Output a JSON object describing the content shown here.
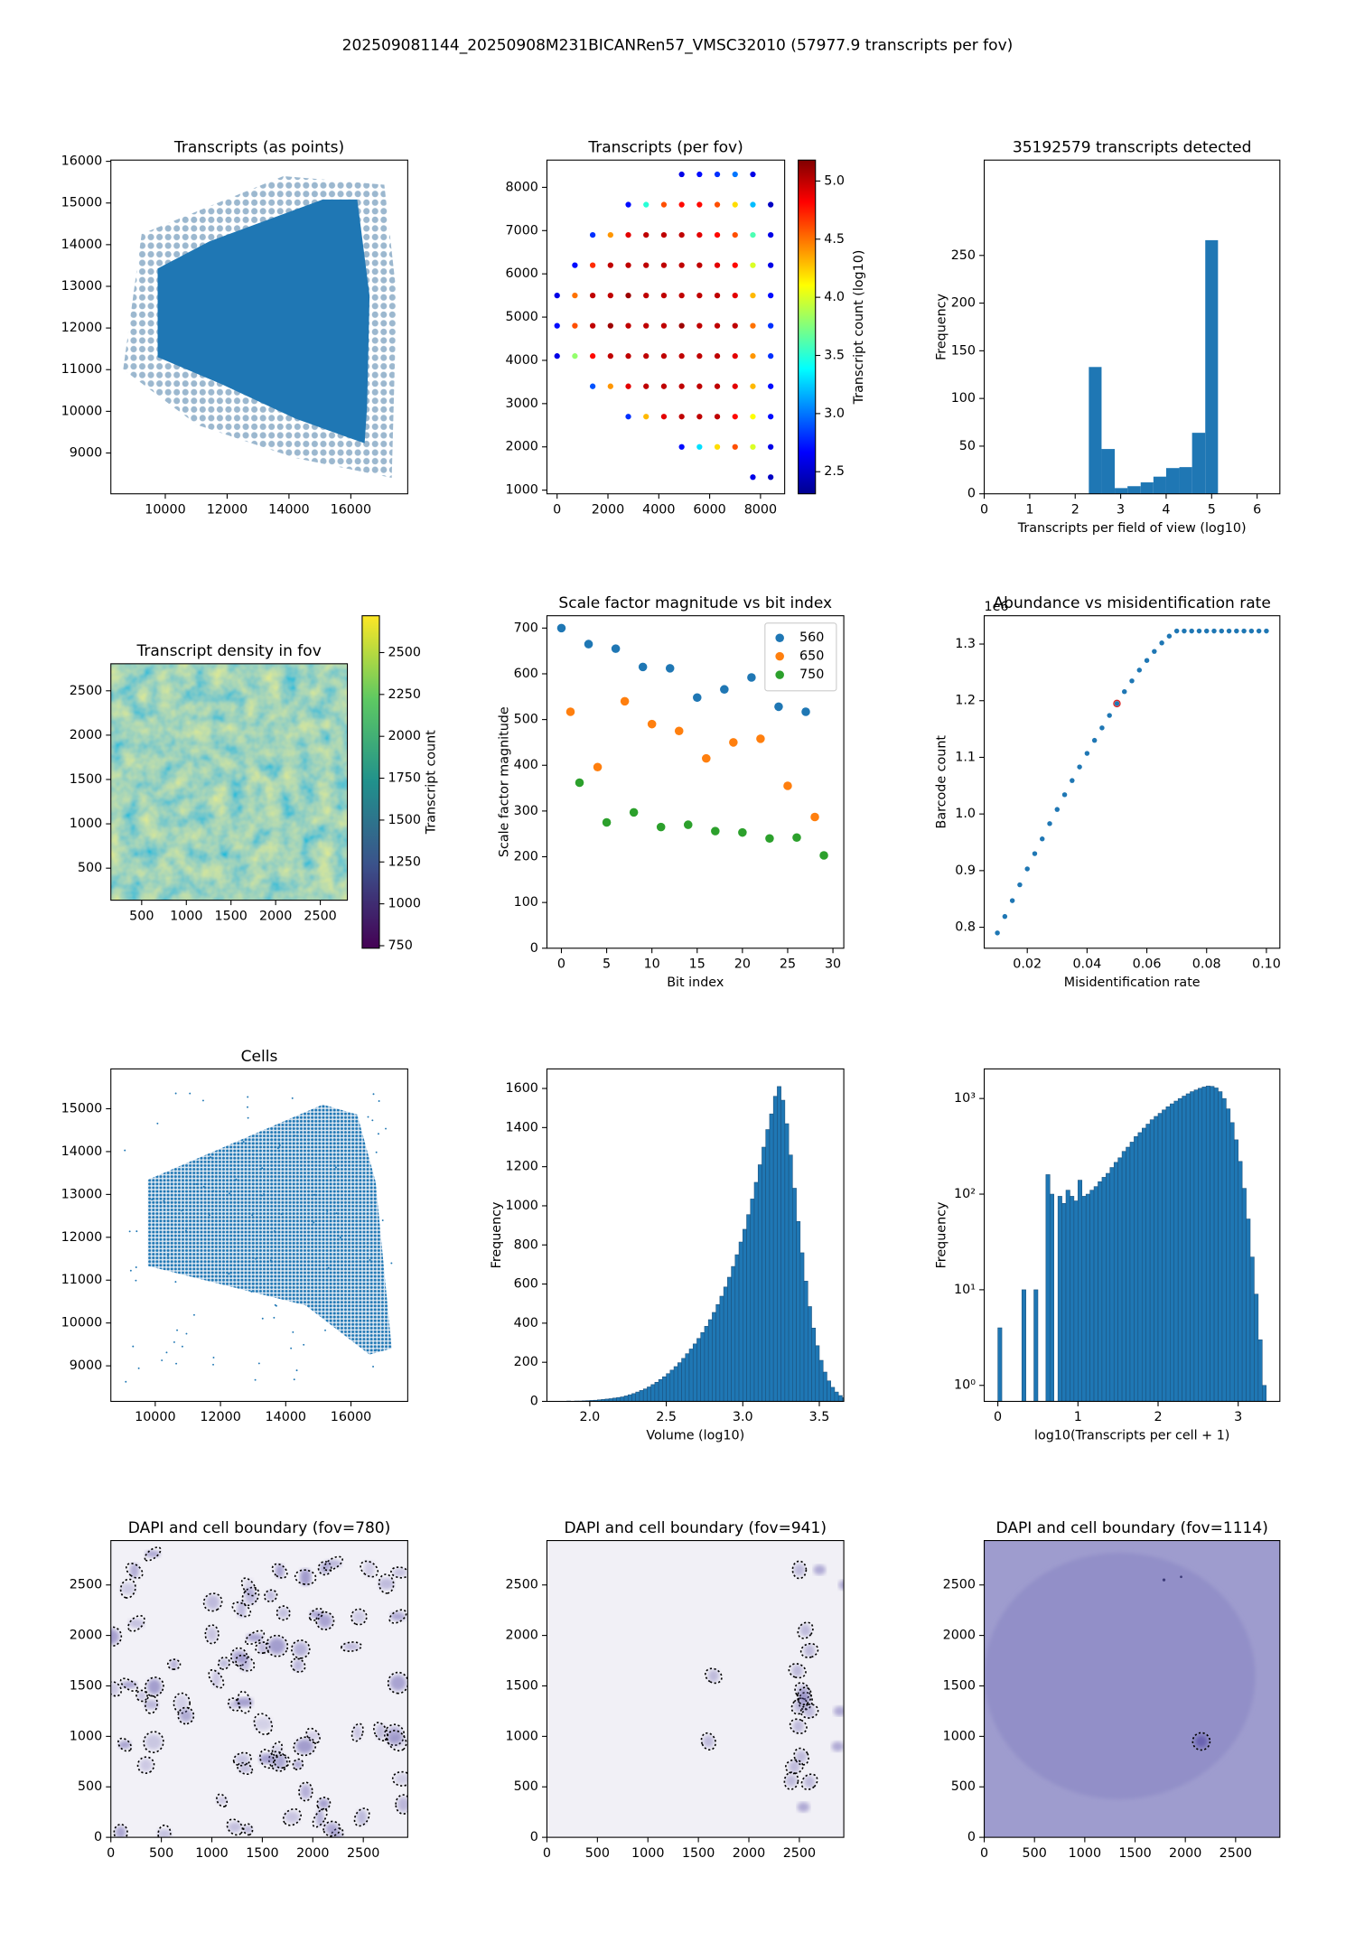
{
  "title": "202509081144_20250908M231BICANRen57_VMSC32010 (57977.9 transcripts per fov)",
  "chart_data": [
    {
      "type": "scatter",
      "title": "Transcripts (as points)",
      "color": "#1f77b4",
      "xlim": [
        8240,
        17840
      ],
      "ylim": [
        8020,
        16030
      ],
      "xticks": [
        10000,
        12000,
        14000,
        16000
      ],
      "yticks": [
        9000,
        10000,
        11000,
        12000,
        13000,
        14000,
        15000,
        16000
      ]
    },
    {
      "type": "dotmap",
      "title": "Transcripts (per fov)",
      "xlim": [
        -400,
        8950
      ],
      "ylim": [
        915,
        8630
      ],
      "xticks": [
        0,
        2000,
        4000,
        6000,
        8000
      ],
      "yticks": [
        1000,
        2000,
        3000,
        4000,
        5000,
        6000,
        7000,
        8000
      ],
      "x": [
        0,
        700,
        1400,
        2100,
        2800,
        3500,
        4200,
        4900,
        5600,
        6300,
        7000,
        7700,
        8400
      ],
      "y": [
        1300,
        2000,
        2700,
        3400,
        4100,
        4800,
        5500,
        6200,
        6900,
        7600,
        8300
      ],
      "values": [
        [
          null,
          null,
          null,
          null,
          null,
          null,
          null,
          null,
          null,
          null,
          null,
          2.6,
          2.5
        ],
        [
          null,
          null,
          null,
          null,
          null,
          null,
          null,
          2.7,
          3.3,
          4.2,
          4.6,
          4.0,
          2.6
        ],
        [
          null,
          null,
          null,
          null,
          2.8,
          4.3,
          4.9,
          5.0,
          5.0,
          5.0,
          4.8,
          4.1,
          2.7
        ],
        [
          null,
          null,
          2.9,
          4.4,
          4.9,
          5.0,
          5.0,
          5.0,
          5.0,
          5.0,
          4.9,
          4.3,
          2.7
        ],
        [
          2.6,
          3.8,
          4.8,
          5.0,
          5.0,
          5.0,
          5.0,
          5.0,
          5.0,
          5.0,
          4.9,
          4.4,
          2.8
        ],
        [
          2.7,
          4.6,
          5.0,
          5.1,
          5.0,
          5.0,
          5.0,
          5.1,
          5.0,
          5.0,
          5.0,
          4.5,
          2.8
        ],
        [
          2.6,
          4.5,
          5.0,
          5.0,
          5.1,
          5.0,
          5.0,
          5.0,
          5.0,
          5.0,
          4.9,
          4.3,
          2.7
        ],
        [
          null,
          2.7,
          4.7,
          5.0,
          5.0,
          5.0,
          5.0,
          5.0,
          5.0,
          4.9,
          4.8,
          4.0,
          2.6
        ],
        [
          null,
          null,
          2.8,
          4.4,
          4.9,
          5.0,
          5.0,
          5.0,
          4.9,
          4.8,
          4.6,
          3.6,
          2.6
        ],
        [
          null,
          null,
          null,
          null,
          2.7,
          3.5,
          4.6,
          4.8,
          4.8,
          4.6,
          4.2,
          3.2,
          2.5
        ],
        [
          null,
          null,
          null,
          null,
          null,
          null,
          null,
          2.6,
          2.7,
          2.8,
          3.0,
          2.6,
          null
        ]
      ],
      "colorbar": {
        "label": "Transcript count (log10)",
        "cmap": "jet",
        "lim": [
          2.31,
          5.18
        ],
        "ticks": [
          2.5,
          {
            "value": 3,
            "label": "3.0"
          },
          3.5,
          {
            "value": 4,
            "label": "4.0"
          },
          4.5,
          {
            "value": 5,
            "label": "5.0"
          }
        ]
      }
    },
    {
      "type": "histogram",
      "title": "35192579 transcripts detected",
      "xlabel": "Transcripts per field of view (log10)",
      "ylabel": "Frequency",
      "color": "#1f77b4",
      "xlim": [
        0,
        6.5
      ],
      "ylim": [
        0,
        350
      ],
      "xticks": [
        0,
        1,
        2,
        3,
        4,
        5,
        6
      ],
      "yticks": [
        0,
        50,
        100,
        150,
        200,
        250
      ],
      "bins": [
        2.3,
        2.58,
        2.87,
        3.15,
        3.44,
        3.72,
        4.0,
        4.29,
        4.57,
        4.86,
        5.14
      ],
      "values": [
        133,
        47,
        6,
        8,
        12,
        18,
        27,
        28,
        64,
        266
      ]
    },
    {
      "type": "image",
      "title": "Transcript density in fov",
      "xlim": [
        155,
        2803
      ],
      "ylim": [
        139,
        2805
      ],
      "xticks": [
        500,
        1000,
        1500,
        2000,
        2500
      ],
      "yticks": [
        500,
        1000,
        1500,
        2000,
        2500
      ],
      "colorbar": {
        "label": "Transcript count",
        "cmap": "viridis",
        "lim": [
          735,
          2720
        ],
        "ticks": [
          750,
          1000,
          1250,
          1500,
          1750,
          2000,
          2250,
          2500
        ]
      }
    },
    {
      "type": "scatter",
      "title": "Scale factor magnitude vs bit index",
      "xlabel": "Bit index",
      "ylabel": "Scale factor magnitude",
      "xlim": [
        -1.6,
        31.2
      ],
      "ylim": [
        0,
        727
      ],
      "xticks": [
        0,
        5,
        10,
        15,
        20,
        25,
        30
      ],
      "yticks": [
        0,
        100,
        200,
        300,
        400,
        500,
        600,
        700
      ],
      "legend": "upper right",
      "series": [
        {
          "name": "560",
          "color": "#1f77b4",
          "x": [
            0,
            3,
            6,
            9,
            12,
            15,
            18,
            21,
            24,
            27
          ],
          "values": [
            700,
            665,
            655,
            615,
            612,
            548,
            566,
            592,
            528,
            517
          ]
        },
        {
          "name": "650",
          "color": "#ff7f0e",
          "x": [
            1,
            4,
            7,
            10,
            13,
            16,
            19,
            22,
            25,
            28
          ],
          "values": [
            517,
            396,
            540,
            490,
            475,
            415,
            450,
            458,
            355,
            287
          ]
        },
        {
          "name": "750",
          "color": "#2ca02c",
          "x": [
            2,
            5,
            8,
            11,
            14,
            17,
            20,
            23,
            26,
            29
          ],
          "values": [
            362,
            275,
            297,
            265,
            270,
            256,
            253,
            240,
            242,
            203
          ]
        }
      ]
    },
    {
      "type": "scatter",
      "title": "Abundance vs misidentification rate",
      "xlabel": "Misidentification rate",
      "ylabel": "Barcode count",
      "y_offset_text": "1e6",
      "color": "#1f77b4",
      "xlim": [
        0.0056,
        0.1045
      ],
      "ylim": [
        0.763,
        1.35
      ],
      "xticks": [
        0.02,
        0.04,
        0.06,
        0.08,
        {
          "value": 0.1,
          "label": "0.10"
        }
      ],
      "yticks": [
        0.8,
        0.9,
        {
          "value": 1,
          "label": "1.0"
        },
        1.1,
        1.2,
        1.3
      ],
      "x": [
        0.01,
        0.0125,
        0.015,
        0.0175,
        0.02,
        0.0225,
        0.025,
        0.0275,
        0.03,
        0.0325,
        0.035,
        0.0375,
        0.04,
        0.0425,
        0.045,
        0.0475,
        0.05,
        0.0525,
        0.055,
        0.0575,
        0.06,
        0.0625,
        0.065,
        0.0675,
        0.07,
        0.0725,
        0.075,
        0.0775,
        0.08,
        0.0825,
        0.085,
        0.0875,
        0.09,
        0.0925,
        0.095,
        0.0975,
        0.1
      ],
      "values": [
        0.79,
        0.819,
        0.847,
        0.875,
        0.903,
        0.93,
        0.956,
        0.983,
        1.008,
        1.034,
        1.059,
        1.083,
        1.107,
        1.13,
        1.152,
        1.174,
        1.195,
        1.216,
        1.235,
        1.254,
        1.271,
        1.287,
        1.302,
        1.314,
        1.323,
        1.323,
        1.323,
        1.323,
        1.323,
        1.323,
        1.323,
        1.323,
        1.323,
        1.323,
        1.323,
        1.323,
        1.323
      ],
      "highlight": {
        "x": 0.05,
        "value": 1.195,
        "color": "#d62728"
      }
    },
    {
      "type": "scatter",
      "title": "Cells",
      "color": "#1f77b4",
      "xlim": [
        8640,
        17740
      ],
      "ylim": [
        8170,
        15930
      ],
      "xticks": [
        10000,
        12000,
        14000,
        16000
      ],
      "yticks": [
        9000,
        10000,
        11000,
        12000,
        13000,
        14000,
        15000
      ]
    },
    {
      "type": "histogram",
      "xlabel": "Volume (log10)",
      "ylabel": "Frequency",
      "color": "#1f77b4",
      "edgecolor": "#1b4f7a",
      "xlim": [
        1.72,
        3.66
      ],
      "ylim": [
        0,
        1700
      ],
      "xticks": [
        {
          "value": 2,
          "label": "2.0"
        },
        2.5,
        {
          "value": 3,
          "label": "3.0"
        },
        3.5
      ],
      "yticks": [
        0,
        200,
        400,
        600,
        800,
        1000,
        1200,
        1400,
        1600
      ],
      "bins": [
        1.8,
        1.825,
        1.85,
        1.875,
        1.9,
        1.925,
        1.95,
        1.975,
        2,
        2.025,
        2.05,
        2.075,
        2.1,
        2.125,
        2.15,
        2.175,
        2.2,
        2.225,
        2.25,
        2.275,
        2.3,
        2.325,
        2.35,
        2.375,
        2.4,
        2.425,
        2.45,
        2.475,
        2.5,
        2.525,
        2.55,
        2.575,
        2.6,
        2.625,
        2.65,
        2.675,
        2.7,
        2.725,
        2.75,
        2.775,
        2.8,
        2.825,
        2.85,
        2.875,
        2.9,
        2.925,
        2.95,
        2.975,
        3,
        3.025,
        3.05,
        3.075,
        3.1,
        3.125,
        3.15,
        3.175,
        3.2,
        3.225,
        3.25,
        3.275,
        3.3,
        3.325,
        3.35,
        3.375,
        3.4,
        3.425,
        3.45,
        3.475,
        3.5,
        3.525,
        3.55,
        3.575,
        3.6,
        3.625,
        3.65,
        3.675,
        3.7,
        3.725,
        3.75,
        3.775,
        3.8
      ],
      "values": [
        1,
        1,
        2,
        1,
        2,
        2,
        3,
        4,
        5,
        6,
        8,
        10,
        12,
        14,
        17,
        20,
        23,
        28,
        34,
        40,
        48,
        56,
        64,
        74,
        86,
        98,
        112,
        126,
        142,
        160,
        178,
        198,
        220,
        244,
        268,
        294,
        322,
        352,
        384,
        418,
        455,
        495,
        538,
        585,
        635,
        690,
        750,
        815,
        880,
        955,
        1035,
        1120,
        1210,
        1300,
        1390,
        1470,
        1560,
        1610,
        1540,
        1420,
        1260,
        1090,
        920,
        760,
        615,
        485,
        375,
        285,
        210,
        150,
        105,
        72,
        48,
        30,
        19,
        11,
        6,
        3,
        2,
        1
      ]
    },
    {
      "type": "histogram",
      "xlabel": "log10(Transcripts per cell + 1)",
      "ylabel": "Frequency",
      "color": "#1f77b4",
      "edgecolor": "#1b4f7a",
      "ylog": true,
      "xlim": [
        -0.17,
        3.52
      ],
      "ylim": [
        0.68,
        2040
      ],
      "xticks": [
        0,
        1,
        2,
        3
      ],
      "yticks": [
        {
          "value": 1,
          "label": "10⁰"
        },
        {
          "value": 10,
          "label": "10¹"
        },
        {
          "value": 100,
          "label": "10²"
        },
        {
          "value": 1000,
          "label": "10³"
        }
      ],
      "bins": [
        0,
        0.05,
        0.1,
        0.15,
        0.2,
        0.25,
        0.3,
        0.35,
        0.4,
        0.45,
        0.5,
        0.55,
        0.6,
        0.65,
        0.7,
        0.75,
        0.8,
        0.85,
        0.9,
        0.95,
        1,
        1.05,
        1.1,
        1.15,
        1.2,
        1.25,
        1.3,
        1.35,
        1.4,
        1.45,
        1.5,
        1.55,
        1.6,
        1.65,
        1.7,
        1.75,
        1.8,
        1.85,
        1.9,
        1.95,
        2,
        2.05,
        2.1,
        2.15,
        2.2,
        2.25,
        2.3,
        2.35,
        2.4,
        2.45,
        2.5,
        2.55,
        2.6,
        2.65,
        2.7,
        2.75,
        2.8,
        2.85,
        2.9,
        2.95,
        3,
        3.05,
        3.1,
        3.15,
        3.2,
        3.25,
        3.3,
        3.35
      ],
      "values": [
        4,
        0,
        0,
        0,
        0,
        0,
        10,
        0,
        0,
        10,
        0,
        0,
        160,
        100,
        0,
        95,
        80,
        110,
        95,
        85,
        140,
        95,
        100,
        110,
        120,
        135,
        150,
        165,
        190,
        215,
        240,
        280,
        310,
        350,
        400,
        440,
        490,
        540,
        600,
        650,
        700,
        760,
        820,
        880,
        940,
        1000,
        1060,
        1120,
        1180,
        1230,
        1280,
        1320,
        1350,
        1340,
        1290,
        1180,
        1000,
        780,
        560,
        370,
        220,
        115,
        55,
        22,
        9,
        3,
        1
      ]
    },
    {
      "type": "image",
      "title": "DAPI and cell boundary (fov=780)",
      "xlim": [
        0,
        2940
      ],
      "ylim": [
        0,
        2940
      ],
      "xticks": [
        0,
        500,
        1000,
        1500,
        2000,
        2500
      ],
      "yticks": [
        0,
        500,
        1000,
        1500,
        2000,
        2500
      ]
    },
    {
      "type": "image",
      "title": "DAPI and cell boundary (fov=941)",
      "xlim": [
        0,
        2940
      ],
      "ylim": [
        0,
        2940
      ],
      "xticks": [
        0,
        500,
        1000,
        1500,
        2000,
        2500
      ],
      "yticks": [
        0,
        500,
        1000,
        1500,
        2000,
        2500
      ]
    },
    {
      "type": "image",
      "title": "DAPI and cell boundary (fov=1114)",
      "xlim": [
        0,
        2940
      ],
      "ylim": [
        0,
        2940
      ],
      "xticks": [
        0,
        500,
        1000,
        1500,
        2000,
        2500
      ],
      "yticks": [
        0,
        500,
        1000,
        1500,
        2000,
        2500
      ]
    }
  ]
}
